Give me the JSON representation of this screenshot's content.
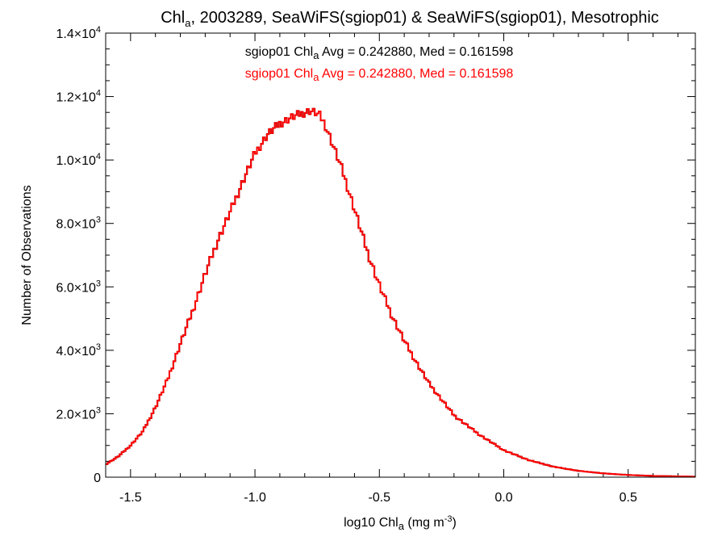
{
  "chart_data": {
    "type": "line",
    "title": {
      "prefix": "Chl",
      "sub": "a",
      "rest": ", 2003289, SeaWiFS(sgiop01) & SeaWiFS(sgiop01), Mesotrophic"
    },
    "xlabel": {
      "prefix": "log10 Chl",
      "sub": "a",
      "mid": " (mg m",
      "sup": "-3",
      "end": ")"
    },
    "ylabel": "Number of Observations",
    "xlim": [
      -1.6,
      0.77
    ],
    "ylim": [
      0,
      14000
    ],
    "x_ticks": [
      {
        "value": -1.5,
        "label": "-1.5"
      },
      {
        "value": -1.0,
        "label": "-1.0"
      },
      {
        "value": -0.5,
        "label": "-0.5"
      },
      {
        "value": 0.0,
        "label": "0.0"
      },
      {
        "value": 0.5,
        "label": "0.5"
      }
    ],
    "x_minor_step": 0.1,
    "y_ticks": [
      {
        "value": 0,
        "mant": "0",
        "times": "",
        "base": "",
        "exp": ""
      },
      {
        "value": 2000,
        "mant": "2.0",
        "times": "×",
        "base": "10",
        "exp": "3"
      },
      {
        "value": 4000,
        "mant": "4.0",
        "times": "×",
        "base": "10",
        "exp": "3"
      },
      {
        "value": 6000,
        "mant": "6.0",
        "times": "×",
        "base": "10",
        "exp": "3"
      },
      {
        "value": 8000,
        "mant": "8.0",
        "times": "×",
        "base": "10",
        "exp": "3"
      },
      {
        "value": 10000,
        "mant": "1.0",
        "times": "×",
        "base": "10",
        "exp": "4"
      },
      {
        "value": 12000,
        "mant": "1.2",
        "times": "×",
        "base": "10",
        "exp": "4"
      },
      {
        "value": 14000,
        "mant": "1.4",
        "times": "×",
        "base": "10",
        "exp": "4"
      }
    ],
    "y_minor_step": 500,
    "legend_placement": "top-center",
    "series": [
      {
        "annotation": {
          "prefix": "sgiop01 Chl",
          "sub": "a",
          "rest": " Avg = 0.242880, Med = 0.161598"
        },
        "color": "#000000",
        "style": "step"
      },
      {
        "annotation": {
          "prefix": "sgiop01 Chl",
          "sub": "a",
          "rest": " Avg = 0.242880, Med = 0.161598"
        },
        "color": "#ff0000",
        "style": "step"
      }
    ],
    "x": [
      -1.6,
      -1.55,
      -1.5,
      -1.45,
      -1.4,
      -1.35,
      -1.3,
      -1.25,
      -1.2,
      -1.15,
      -1.1,
      -1.05,
      -1.0,
      -0.95,
      -0.9,
      -0.85,
      -0.8,
      -0.78,
      -0.76,
      -0.74,
      -0.72,
      -0.7,
      -0.65,
      -0.6,
      -0.55,
      -0.5,
      -0.45,
      -0.4,
      -0.35,
      -0.3,
      -0.25,
      -0.2,
      -0.1,
      0.0,
      0.1,
      0.2,
      0.3,
      0.4,
      0.5,
      0.6,
      0.7,
      0.77
    ],
    "values": [
      400,
      650,
      1000,
      1450,
      2200,
      3100,
      4200,
      5250,
      6400,
      7450,
      8350,
      9300,
      10200,
      10800,
      11150,
      11350,
      11500,
      11550,
      11500,
      11400,
      11150,
      10750,
      9700,
      8450,
      7150,
      6050,
      5100,
      4300,
      3600,
      2950,
      2450,
      1950,
      1350,
      850,
      540,
      330,
      200,
      120,
      70,
      40,
      25,
      15
    ],
    "bin_width": 0.008
  }
}
